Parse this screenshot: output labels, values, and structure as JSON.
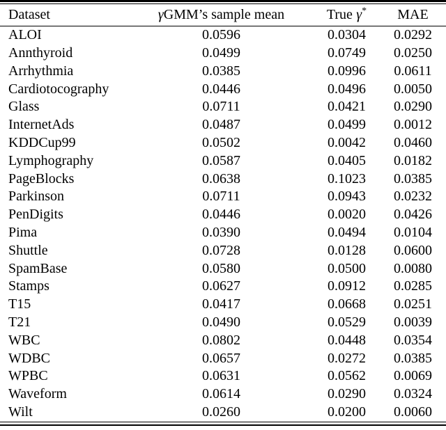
{
  "page": {
    "background": "#ffffff",
    "text_color": "#000000",
    "rule_color": "#000000"
  },
  "header": {
    "dataset": "Dataset",
    "gamma_symbol": "γ",
    "gmm_rest": "GMM’s sample mean",
    "true_prefix": "True",
    "true_gamma": "γ",
    "true_sup": "*",
    "mae": "MAE"
  },
  "chart_data": {
    "type": "table",
    "columns": [
      "Dataset",
      "γGMM’s sample mean",
      "True γ*",
      "MAE"
    ],
    "rows": [
      [
        "ALOI",
        "0.0596",
        "0.0304",
        "0.0292"
      ],
      [
        "Annthyroid",
        "0.0499",
        "0.0749",
        "0.0250"
      ],
      [
        "Arrhythmia",
        "0.0385",
        "0.0996",
        "0.0611"
      ],
      [
        "Cardiotocography",
        "0.0446",
        "0.0496",
        "0.0050"
      ],
      [
        "Glass",
        "0.0711",
        "0.0421",
        "0.0290"
      ],
      [
        "InternetAds",
        "0.0487",
        "0.0499",
        "0.0012"
      ],
      [
        "KDDCup99",
        "0.0502",
        "0.0042",
        "0.0460"
      ],
      [
        "Lymphography",
        "0.0587",
        "0.0405",
        "0.0182"
      ],
      [
        "PageBlocks",
        "0.0638",
        "0.1023",
        "0.0385"
      ],
      [
        "Parkinson",
        "0.0711",
        "0.0943",
        "0.0232"
      ],
      [
        "PenDigits",
        "0.0446",
        "0.0020",
        "0.0426"
      ],
      [
        "Pima",
        "0.0390",
        "0.0494",
        "0.0104"
      ],
      [
        "Shuttle",
        "0.0728",
        "0.0128",
        "0.0600"
      ],
      [
        "SpamBase",
        "0.0580",
        "0.0500",
        "0.0080"
      ],
      [
        "Stamps",
        "0.0627",
        "0.0912",
        "0.0285"
      ],
      [
        "T15",
        "0.0417",
        "0.0668",
        "0.0251"
      ],
      [
        "T21",
        "0.0490",
        "0.0529",
        "0.0039"
      ],
      [
        "WBC",
        "0.0802",
        "0.0448",
        "0.0354"
      ],
      [
        "WDBC",
        "0.0657",
        "0.0272",
        "0.0385"
      ],
      [
        "WPBC",
        "0.0631",
        "0.0562",
        "0.0069"
      ],
      [
        "Waveform",
        "0.0614",
        "0.0290",
        "0.0324"
      ],
      [
        "Wilt",
        "0.0260",
        "0.0200",
        "0.0060"
      ]
    ]
  }
}
